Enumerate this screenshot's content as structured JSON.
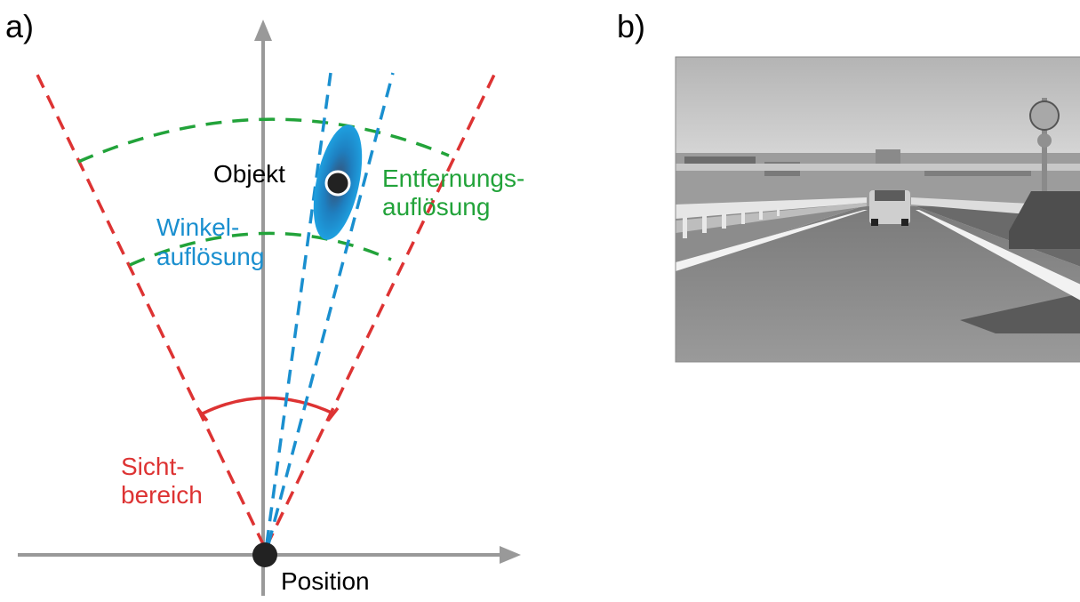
{
  "panels": {
    "a": {
      "label": "a)"
    },
    "b": {
      "label": "b)"
    }
  },
  "diagram_a": {
    "labels": {
      "object": "Objekt",
      "range_res_1": "Entfernungs-",
      "range_res_2": "auflösung",
      "angle_res_1": "Winkel-",
      "angle_res_2": "auflösung",
      "fov_1": "Sicht-",
      "fov_2": "bereich",
      "position": "Position"
    },
    "colors": {
      "axis": "#999999",
      "fov": "#dd3333",
      "range": "#22a33a",
      "angle": "#1a8fcf",
      "object": "#222222",
      "ellipse": "#1e90d0",
      "text_black": "#000000"
    }
  },
  "photo_b": {
    "description_icon": "road-photo-grayscale"
  }
}
